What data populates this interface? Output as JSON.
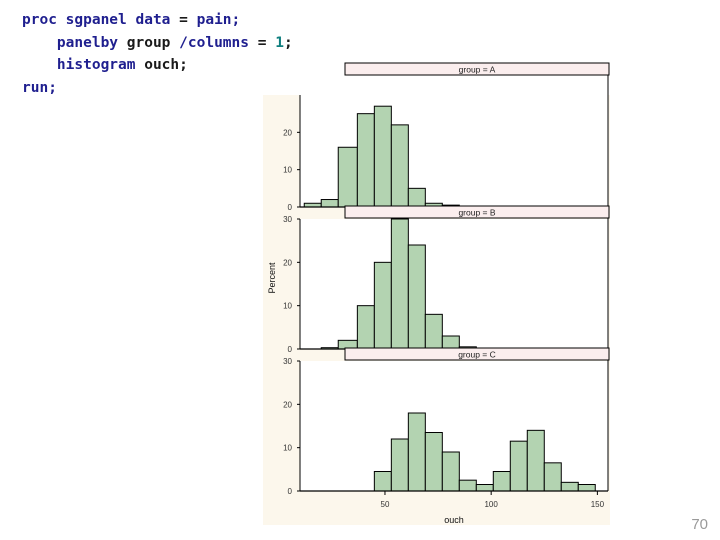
{
  "code": {
    "lines": [
      [
        {
          "t": "proc sgpanel data",
          "c": "kw"
        },
        {
          "t": " = ",
          "c": "plain"
        },
        {
          "t": "pain;",
          "c": "kw"
        }
      ],
      [
        {
          "t": "    panelby ",
          "c": "kw"
        },
        {
          "t": "group ",
          "c": "plain"
        },
        {
          "t": "/columns ",
          "c": "kw"
        },
        {
          "t": "= ",
          "c": "plain"
        },
        {
          "t": "1",
          "c": "num"
        },
        {
          "t": ";",
          "c": "plain"
        }
      ],
      [
        {
          "t": "    histogram ",
          "c": "kw"
        },
        {
          "t": "ouch;",
          "c": "plain"
        }
      ],
      [
        {
          "t": "run;",
          "c": "kw"
        }
      ]
    ]
  },
  "slide_number": "70",
  "chart_data": {
    "type": "bar",
    "xlabel": "ouch",
    "ylabel": "Percent",
    "xlim": [
      10,
      155
    ],
    "xticks": [
      "50",
      "100",
      "150"
    ],
    "xtick_values": [
      50,
      100,
      150
    ],
    "ylim": [
      0,
      30
    ],
    "bar_fill": "#b3d3b1",
    "header_fill": "#fbeeee",
    "panels": [
      {
        "header": "group = A",
        "yticks": [
          "0",
          "10",
          "20"
        ],
        "ytick_values": [
          0,
          10,
          20
        ],
        "bins": [
          {
            "x0": 12,
            "x1": 20,
            "y": 1
          },
          {
            "x0": 20,
            "x1": 28,
            "y": 2
          },
          {
            "x0": 28,
            "x1": 37,
            "y": 16
          },
          {
            "x0": 37,
            "x1": 45,
            "y": 25
          },
          {
            "x0": 45,
            "x1": 53,
            "y": 27
          },
          {
            "x0": 53,
            "x1": 61,
            "y": 22
          },
          {
            "x0": 61,
            "x1": 69,
            "y": 5
          },
          {
            "x0": 69,
            "x1": 77,
            "y": 1
          },
          {
            "x0": 77,
            "x1": 85,
            "y": 0.5
          }
        ]
      },
      {
        "header": "group = B",
        "yticks": [
          "0",
          "10",
          "20",
          "30"
        ],
        "ytick_values": [
          0,
          10,
          20,
          30
        ],
        "bins": [
          {
            "x0": 20,
            "x1": 28,
            "y": 0.3
          },
          {
            "x0": 28,
            "x1": 37,
            "y": 2
          },
          {
            "x0": 37,
            "x1": 45,
            "y": 10
          },
          {
            "x0": 45,
            "x1": 53,
            "y": 20
          },
          {
            "x0": 53,
            "x1": 61,
            "y": 30
          },
          {
            "x0": 61,
            "x1": 69,
            "y": 24
          },
          {
            "x0": 69,
            "x1": 77,
            "y": 8
          },
          {
            "x0": 77,
            "x1": 85,
            "y": 3
          },
          {
            "x0": 85,
            "x1": 93,
            "y": 0.5
          }
        ]
      },
      {
        "header": "group = C",
        "yticks": [
          "0",
          "10",
          "20",
          "30"
        ],
        "ytick_values": [
          0,
          10,
          20,
          30
        ],
        "bins": [
          {
            "x0": 45,
            "x1": 53,
            "y": 4.5
          },
          {
            "x0": 53,
            "x1": 61,
            "y": 12
          },
          {
            "x0": 61,
            "x1": 69,
            "y": 18
          },
          {
            "x0": 69,
            "x1": 77,
            "y": 13.5
          },
          {
            "x0": 77,
            "x1": 85,
            "y": 9
          },
          {
            "x0": 85,
            "x1": 93,
            "y": 2.5
          },
          {
            "x0": 93,
            "x1": 101,
            "y": 1.5
          },
          {
            "x0": 101,
            "x1": 109,
            "y": 4.5
          },
          {
            "x0": 109,
            "x1": 117,
            "y": 11.5
          },
          {
            "x0": 117,
            "x1": 125,
            "y": 14
          },
          {
            "x0": 125,
            "x1": 133,
            "y": 6.5
          },
          {
            "x0": 133,
            "x1": 141,
            "y": 2
          },
          {
            "x0": 141,
            "x1": 149,
            "y": 1.5
          }
        ]
      }
    ]
  }
}
